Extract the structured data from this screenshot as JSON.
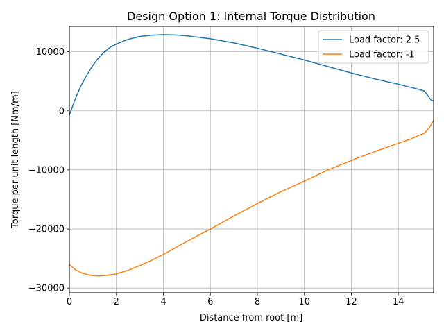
{
  "chart_data": {
    "type": "line",
    "title": "Design Option 1: Internal Torque Distribution",
    "xlabel": "Distance from root [m]",
    "ylabel": "Torque per unit length [Nm/m]",
    "xlim": [
      0,
      15.5
    ],
    "ylim": [
      -30800,
      14300
    ],
    "x_ticks": [
      0,
      2,
      4,
      6,
      8,
      10,
      12,
      14
    ],
    "y_ticks": [
      -30000,
      -20000,
      -10000,
      0,
      10000
    ],
    "x_tick_labels": [
      "0",
      "2",
      "4",
      "6",
      "8",
      "10",
      "12",
      "14"
    ],
    "y_tick_labels": [
      "−30000",
      "−20000",
      "−10000",
      "0",
      "10000"
    ],
    "grid": true,
    "legend_position": "top-right",
    "series": [
      {
        "name": "Load factor: 2.5",
        "color": "#1f77b4",
        "x": [
          0,
          0.25,
          0.5,
          0.75,
          1.0,
          1.25,
          1.5,
          1.75,
          2.0,
          2.5,
          3.0,
          3.5,
          4.0,
          4.5,
          5.0,
          6.0,
          7.0,
          8.0,
          9.0,
          10.0,
          11.0,
          12.0,
          13.0,
          14.0,
          14.5,
          14.9,
          15.1,
          15.2,
          15.3,
          15.4,
          15.5
        ],
        "y": [
          -700,
          2000,
          4300,
          6100,
          7700,
          9000,
          10000,
          10800,
          11300,
          12100,
          12600,
          12800,
          12900,
          12850,
          12700,
          12200,
          11500,
          10600,
          9600,
          8600,
          7500,
          6400,
          5400,
          4500,
          4000,
          3600,
          3350,
          2900,
          2300,
          1800,
          1700
        ]
      },
      {
        "name": "Load factor: -1",
        "color": "#ff7f0e",
        "x": [
          0,
          0.25,
          0.5,
          0.75,
          1.0,
          1.25,
          1.5,
          1.75,
          2.0,
          2.5,
          3.0,
          3.5,
          4.0,
          5.0,
          6.0,
          7.0,
          8.0,
          9.0,
          10.0,
          11.0,
          12.0,
          13.0,
          14.0,
          14.5,
          14.9,
          15.1,
          15.2,
          15.3,
          15.4,
          15.5
        ],
        "y": [
          -26000,
          -26900,
          -27400,
          -27700,
          -27900,
          -27950,
          -27900,
          -27750,
          -27600,
          -27000,
          -26200,
          -25300,
          -24300,
          -22100,
          -20000,
          -17800,
          -15700,
          -13700,
          -11900,
          -10000,
          -8400,
          -6900,
          -5500,
          -4800,
          -4100,
          -3800,
          -3400,
          -2900,
          -2300,
          -1600
        ]
      }
    ]
  }
}
